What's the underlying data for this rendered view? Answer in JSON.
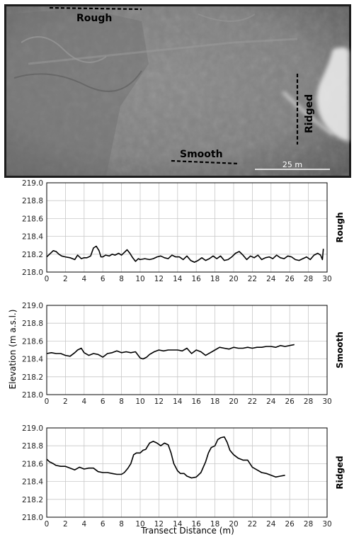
{
  "image": {
    "labels": {
      "rough": "Rough",
      "smooth": "Smooth",
      "ridged": "Ridged"
    },
    "scale_bar": "25 m"
  },
  "figure": {
    "ylabel": "Elevation (m a.s.l.)",
    "xlabel": "Transect Distance (m)"
  },
  "chart_data": [
    {
      "type": "line",
      "panel_label": "Rough",
      "xlim": [
        0,
        30
      ],
      "ylim": [
        218.0,
        219.0
      ],
      "xticks": [
        "0",
        "2",
        "4",
        "6",
        "8",
        "10",
        "12",
        "14",
        "16",
        "18",
        "20",
        "22",
        "24",
        "26",
        "28",
        "30"
      ],
      "yticks": [
        "218.0",
        "218.2",
        "218.4",
        "218.6",
        "218.8",
        "219.0"
      ],
      "grid": true,
      "series": [
        {
          "color": "#000000",
          "x": [
            0,
            0.3,
            0.7,
            1.0,
            1.3,
            1.6,
            2.0,
            2.5,
            3.0,
            3.3,
            3.7,
            4.0,
            4.3,
            4.7,
            5.0,
            5.3,
            5.6,
            5.8,
            6.0,
            6.3,
            6.7,
            7.0,
            7.3,
            7.7,
            8.0,
            8.3,
            8.6,
            8.9,
            9.2,
            9.5,
            9.8,
            10.0,
            10.5,
            11.0,
            11.4,
            11.8,
            12.2,
            12.6,
            13.0,
            13.4,
            13.8,
            14.2,
            14.6,
            15.0,
            15.4,
            15.8,
            16.2,
            16.6,
            17.0,
            17.4,
            17.8,
            18.2,
            18.6,
            19.0,
            19.4,
            19.8,
            20.2,
            20.6,
            21.0,
            21.4,
            21.8,
            22.2,
            22.6,
            23.0,
            23.4,
            23.8,
            24.2,
            24.6,
            25.0,
            25.4,
            25.8,
            26.2,
            26.6,
            27.0,
            27.4,
            27.8,
            28.2,
            28.6,
            29.0,
            29.3,
            29.5,
            29.6
          ],
          "y": [
            218.17,
            218.2,
            218.24,
            218.23,
            218.2,
            218.18,
            218.17,
            218.16,
            218.14,
            218.19,
            218.15,
            218.16,
            218.16,
            218.18,
            218.27,
            218.29,
            218.24,
            218.17,
            218.17,
            218.19,
            218.18,
            218.2,
            218.19,
            218.21,
            218.19,
            218.22,
            218.25,
            218.21,
            218.16,
            218.12,
            218.15,
            218.14,
            218.15,
            218.14,
            218.15,
            218.17,
            218.18,
            218.16,
            218.15,
            218.19,
            218.17,
            218.17,
            218.14,
            218.18,
            218.13,
            218.11,
            218.13,
            218.16,
            218.13,
            218.15,
            218.18,
            218.15,
            218.18,
            218.13,
            218.14,
            218.17,
            218.21,
            218.23,
            218.19,
            218.14,
            218.18,
            218.16,
            218.19,
            218.14,
            218.16,
            218.17,
            218.15,
            218.19,
            218.16,
            218.15,
            218.18,
            218.17,
            218.14,
            218.13,
            218.15,
            218.17,
            218.14,
            218.19,
            218.21,
            218.19,
            218.14,
            218.26
          ]
        }
      ]
    },
    {
      "type": "line",
      "panel_label": "Smooth",
      "xlim": [
        0,
        30
      ],
      "ylim": [
        218.0,
        219.0
      ],
      "xticks": [
        "0",
        "2",
        "4",
        "6",
        "8",
        "10",
        "12",
        "14",
        "16",
        "18",
        "20",
        "22",
        "24",
        "26",
        "28",
        "30"
      ],
      "yticks": [
        "218.0",
        "218.2",
        "218.4",
        "218.6",
        "218.8",
        "219.0"
      ],
      "grid": true,
      "series": [
        {
          "color": "#000000",
          "x": [
            0,
            0.5,
            1.0,
            1.5,
            2.0,
            2.5,
            3.0,
            3.3,
            3.7,
            4.0,
            4.5,
            5.0,
            5.5,
            6.0,
            6.5,
            7.0,
            7.5,
            8.0,
            8.5,
            9.0,
            9.5,
            10.0,
            10.3,
            10.7,
            11.0,
            11.5,
            12.0,
            12.5,
            13.0,
            13.5,
            14.0,
            14.5,
            15.0,
            15.5,
            16.0,
            16.5,
            17.0,
            17.5,
            18.0,
            18.5,
            19.0,
            19.5,
            20.0,
            20.5,
            21.0,
            21.5,
            22.0,
            22.5,
            23.0,
            23.5,
            24.0,
            24.5,
            25.0,
            25.5,
            26.0,
            26.5
          ],
          "y": [
            218.46,
            218.47,
            218.46,
            218.46,
            218.44,
            218.43,
            218.47,
            218.5,
            218.52,
            218.47,
            218.44,
            218.46,
            218.45,
            218.42,
            218.46,
            218.47,
            218.49,
            218.47,
            218.48,
            218.47,
            218.48,
            218.41,
            218.4,
            218.42,
            218.45,
            218.48,
            218.5,
            218.49,
            218.5,
            218.5,
            218.5,
            218.49,
            218.52,
            218.46,
            218.5,
            218.48,
            218.44,
            218.47,
            218.5,
            218.53,
            218.52,
            218.51,
            218.53,
            218.52,
            218.52,
            218.53,
            218.52,
            218.53,
            218.53,
            218.54,
            218.54,
            218.53,
            218.55,
            218.54,
            218.55,
            218.56
          ]
        }
      ]
    },
    {
      "type": "line",
      "panel_label": "Ridged",
      "xlim": [
        0,
        30
      ],
      "ylim": [
        218.0,
        219.0
      ],
      "xticks": [
        "0",
        "2",
        "4",
        "6",
        "8",
        "10",
        "12",
        "14",
        "16",
        "18",
        "20",
        "22",
        "24",
        "26",
        "28",
        "30"
      ],
      "yticks": [
        "218.0",
        "218.2",
        "218.4",
        "218.6",
        "218.8",
        "219.0"
      ],
      "grid": true,
      "series": [
        {
          "color": "#000000",
          "x": [
            0,
            0.3,
            0.7,
            1.0,
            1.5,
            2.0,
            2.5,
            3.0,
            3.5,
            4.0,
            4.5,
            5.0,
            5.5,
            6.0,
            6.5,
            7.0,
            7.5,
            8.0,
            8.3,
            8.7,
            9.0,
            9.3,
            9.6,
            10.0,
            10.3,
            10.6,
            11.0,
            11.4,
            11.8,
            12.2,
            12.6,
            13.0,
            13.3,
            13.6,
            14.0,
            14.3,
            14.7,
            15.0,
            15.5,
            16.0,
            16.5,
            17.0,
            17.3,
            17.6,
            18.0,
            18.3,
            18.6,
            19.0,
            19.3,
            19.6,
            20.0,
            20.5,
            21.0,
            21.5,
            22.0,
            22.5,
            23.0,
            23.5,
            24.0,
            24.5,
            25.0,
            25.5
          ],
          "y": [
            218.65,
            218.62,
            218.6,
            218.58,
            218.57,
            218.57,
            218.55,
            218.53,
            218.56,
            218.54,
            218.55,
            218.55,
            218.51,
            218.5,
            218.5,
            218.49,
            218.48,
            218.48,
            218.5,
            218.55,
            218.6,
            218.7,
            218.72,
            218.72,
            218.75,
            218.76,
            218.83,
            218.85,
            218.83,
            218.8,
            218.83,
            218.81,
            218.72,
            218.6,
            218.52,
            218.49,
            218.49,
            218.46,
            218.44,
            218.45,
            218.5,
            218.62,
            218.72,
            218.78,
            218.8,
            218.87,
            218.89,
            218.9,
            218.84,
            218.75,
            218.7,
            218.66,
            218.64,
            218.64,
            218.56,
            218.53,
            218.5,
            218.49,
            218.47,
            218.45,
            218.46,
            218.47
          ]
        }
      ]
    }
  ]
}
